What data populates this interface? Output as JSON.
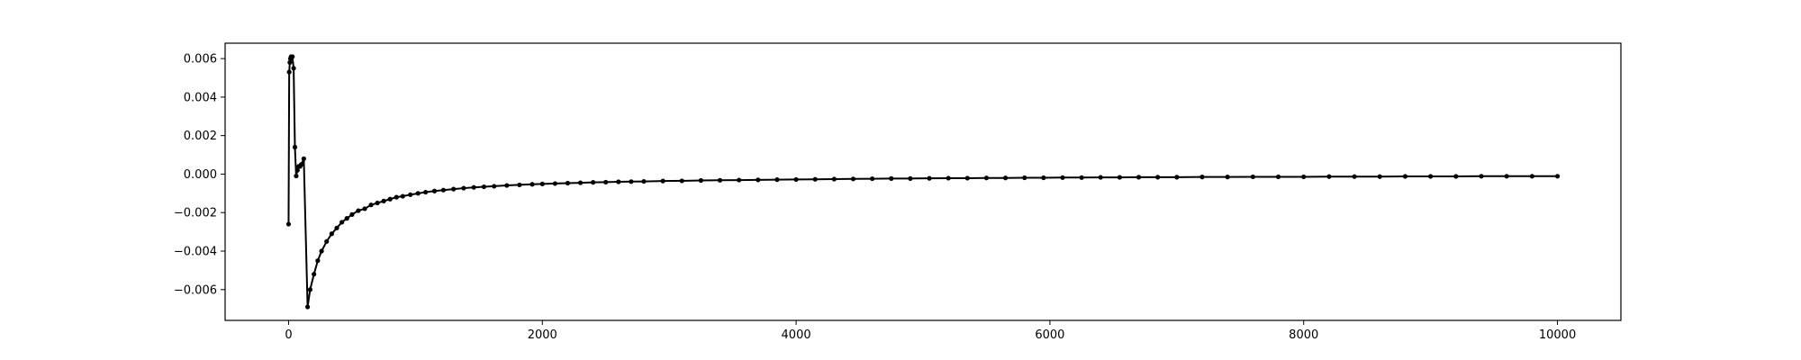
{
  "chart_data": {
    "type": "line",
    "title": "",
    "xlabel": "",
    "ylabel": "",
    "xlim": [
      -500,
      10500
    ],
    "ylim": [
      -0.0076,
      0.0068
    ],
    "grid": false,
    "legend": "none",
    "colors": {
      "line": "#000000",
      "marker": "#000000",
      "axes": "#000000",
      "background": "#ffffff"
    },
    "x_ticks": [
      {
        "value": 0,
        "label": "0"
      },
      {
        "value": 2000,
        "label": "2000"
      },
      {
        "value": 4000,
        "label": "4000"
      },
      {
        "value": 6000,
        "label": "6000"
      },
      {
        "value": 8000,
        "label": "8000"
      },
      {
        "value": 10000,
        "label": "10000"
      }
    ],
    "y_ticks": [
      {
        "value": -0.006,
        "label": "−0.006"
      },
      {
        "value": -0.004,
        "label": "−0.004"
      },
      {
        "value": -0.002,
        "label": "−0.002"
      },
      {
        "value": 0.0,
        "label": "0.000"
      },
      {
        "value": 0.002,
        "label": "0.002"
      },
      {
        "value": 0.004,
        "label": "0.004"
      },
      {
        "value": 0.006,
        "label": "0.006"
      }
    ],
    "series": [
      {
        "x": [
          0,
          5,
          10,
          15,
          20,
          30,
          40,
          50,
          60,
          70,
          80,
          90,
          100,
          120,
          150,
          170,
          200,
          230,
          260,
          300,
          340,
          380,
          420,
          460,
          500,
          550,
          600,
          650,
          700,
          750,
          800,
          850,
          900,
          960,
          1020,
          1080,
          1150,
          1220,
          1300,
          1380,
          1460,
          1540,
          1620,
          1720,
          1820,
          1920,
          2000,
          2100,
          2200,
          2300,
          2400,
          2500,
          2600,
          2700,
          2800,
          2950,
          3100,
          3250,
          3400,
          3550,
          3700,
          3850,
          4000,
          4150,
          4300,
          4450,
          4600,
          4750,
          4900,
          5050,
          5200,
          5350,
          5500,
          5650,
          5800,
          5950,
          6100,
          6250,
          6400,
          6550,
          6700,
          6850,
          7000,
          7200,
          7400,
          7600,
          7800,
          8000,
          8200,
          8400,
          8600,
          8800,
          9000,
          9200,
          9400,
          9600,
          9800,
          10000
        ],
        "y": [
          -0.0026,
          0.0053,
          0.0058,
          0.006,
          0.0061,
          0.0061,
          0.0055,
          0.0014,
          -0.0001,
          0.0002,
          0.0004,
          0.0004,
          0.0005,
          0.0008,
          -0.0069,
          -0.006,
          -0.0052,
          -0.0045,
          -0.004,
          -0.0035,
          -0.0031,
          -0.0028,
          -0.0025,
          -0.0023,
          -0.0021,
          -0.0019,
          -0.0018,
          -0.0016,
          -0.0015,
          -0.0014,
          -0.0013,
          -0.0012,
          -0.00115,
          -0.00107,
          -0.001,
          -0.00094,
          -0.00088,
          -0.00083,
          -0.00078,
          -0.00073,
          -0.00069,
          -0.00066,
          -0.00063,
          -0.00059,
          -0.00056,
          -0.00053,
          -0.00051,
          -0.00049,
          -0.00047,
          -0.00045,
          -0.00043,
          -0.00042,
          -0.0004,
          -0.00039,
          -0.00038,
          -0.00036,
          -0.00035,
          -0.00033,
          -0.00032,
          -0.00031,
          -0.0003,
          -0.00029,
          -0.00028,
          -0.00027,
          -0.00026,
          -0.00025,
          -0.00024,
          -0.00023,
          -0.00023,
          -0.00022,
          -0.00021,
          -0.00021,
          -0.0002,
          -0.0002,
          -0.00019,
          -0.00019,
          -0.00018,
          -0.00018,
          -0.00017,
          -0.00017,
          -0.00016,
          -0.00016,
          -0.00016,
          -0.00015,
          -0.00015,
          -0.00014,
          -0.00014,
          -0.00014,
          -0.00013,
          -0.00013,
          -0.00013,
          -0.00012,
          -0.00012,
          -0.00012,
          -0.00011,
          -0.00011,
          -0.00011,
          -0.00011
        ]
      }
    ]
  }
}
